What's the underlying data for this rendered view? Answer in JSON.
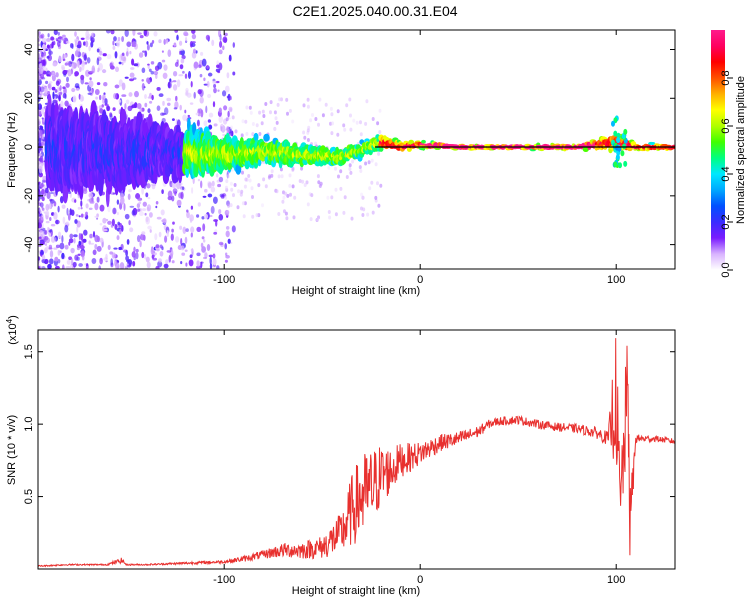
{
  "title": "C2E1.2025.040.00.31.E04",
  "chart_data": [
    {
      "type": "heatmap",
      "xlabel": "Height of straight line (km)",
      "ylabel": "Frequency (Hz)",
      "xlim": [
        -195,
        130
      ],
      "ylim": [
        -50,
        48
      ],
      "xticks": [
        -100,
        0,
        100
      ],
      "yticks": [
        -40,
        -20,
        0,
        20,
        40
      ],
      "colorbar": {
        "label": "Normalized spectral amplitude",
        "range": [
          0,
          1
        ],
        "ticks": [
          "0.0",
          "0.2",
          "0.4",
          "0.6",
          "0.8"
        ],
        "colors": [
          "#ffffff",
          "#d9b3ff",
          "#7a1cff",
          "#3a2cff",
          "#0050ff",
          "#00a8ff",
          "#00e8ff",
          "#00ff80",
          "#40ff00",
          "#b0ff00",
          "#ffff00",
          "#ffb000",
          "#ff5000",
          "#ff0000",
          "#ff0060",
          "#ff1a8c"
        ]
      },
      "trace": [
        {
          "x": -190,
          "y": 0,
          "spread": 22
        },
        {
          "x": -160,
          "y": -2,
          "spread": 20
        },
        {
          "x": -130,
          "y": -2,
          "spread": 14
        },
        {
          "x": -100,
          "y": -3,
          "spread": 10
        },
        {
          "x": -80,
          "y": -2,
          "spread": 7
        },
        {
          "x": -60,
          "y": -3,
          "spread": 6
        },
        {
          "x": -40,
          "y": -4,
          "spread": 5
        },
        {
          "x": -20,
          "y": 2,
          "spread": 4
        },
        {
          "x": -10,
          "y": 0,
          "spread": 3
        },
        {
          "x": 0,
          "y": 1,
          "spread": 2
        },
        {
          "x": 20,
          "y": 0,
          "spread": 1.5
        },
        {
          "x": 40,
          "y": 0,
          "spread": 1.2
        },
        {
          "x": 60,
          "y": 0,
          "spread": 1.5
        },
        {
          "x": 80,
          "y": 0,
          "spread": 1.5
        },
        {
          "x": 100,
          "y": 2,
          "spread": 5
        },
        {
          "x": 110,
          "y": 0,
          "spread": 2
        },
        {
          "x": 130,
          "y": 0,
          "spread": 1.5
        }
      ]
    },
    {
      "type": "line",
      "xlabel": "Height of straight line (km)",
      "ylabel": "SNR (10 * v/v)",
      "yscale_label": "(x10",
      "yscale_exp": "4",
      "yscale_close": ")",
      "xlim": [
        -195,
        130
      ],
      "ylim": [
        0,
        1.65
      ],
      "xticks": [
        -100,
        0,
        100
      ],
      "yticks": [
        "0.5",
        "1.0",
        "1.5"
      ],
      "color": "#e8302e",
      "series": [
        {
          "x": [
            -195,
            -180,
            -160,
            -152,
            -150,
            -140,
            -120,
            -100,
            -90,
            -80,
            -70,
            -60,
            -50,
            -40,
            -35,
            -30,
            -25,
            -20,
            -15,
            -10,
            -5,
            0,
            10,
            20,
            30,
            35,
            40,
            50,
            60,
            70,
            80,
            90,
            96,
            98,
            100,
            102,
            104,
            106,
            107,
            110,
            120,
            130
          ],
          "y": [
            0.02,
            0.03,
            0.03,
            0.06,
            0.03,
            0.03,
            0.04,
            0.05,
            0.07,
            0.1,
            0.13,
            0.13,
            0.15,
            0.25,
            0.4,
            0.5,
            0.55,
            0.65,
            0.68,
            0.75,
            0.77,
            0.8,
            0.87,
            0.9,
            0.95,
            1.0,
            1.02,
            1.03,
            1.0,
            0.98,
            0.97,
            0.94,
            0.9,
            1.05,
            1.2,
            0.4,
            0.85,
            1.3,
            0.3,
            0.9,
            0.9,
            0.88
          ],
          "noise": [
            0.005,
            0.005,
            0.005,
            0.02,
            0.005,
            0.005,
            0.008,
            0.01,
            0.02,
            0.03,
            0.05,
            0.06,
            0.08,
            0.15,
            0.25,
            0.3,
            0.28,
            0.22,
            0.16,
            0.12,
            0.1,
            0.08,
            0.06,
            0.05,
            0.04,
            0.03,
            0.03,
            0.03,
            0.03,
            0.03,
            0.03,
            0.04,
            0.05,
            0.3,
            0.45,
            0.3,
            0.4,
            0.35,
            0.25,
            0.03,
            0.02,
            0.02
          ]
        }
      ]
    }
  ]
}
